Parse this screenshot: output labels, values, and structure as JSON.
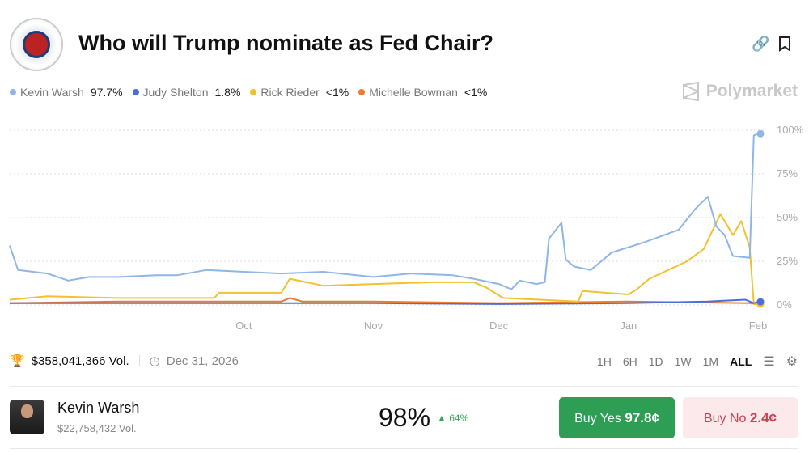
{
  "header": {
    "title": "Who will Trump nominate as Fed Chair?",
    "brand": "Polymarket"
  },
  "legend": [
    {
      "name": "Kevin Warsh",
      "value": "97.7%",
      "color": "#8fb6e6"
    },
    {
      "name": "Judy Shelton",
      "value": "1.8%",
      "color": "#4a6fd6"
    },
    {
      "name": "Rick Rieder",
      "value": "<1%",
      "color": "#f2c12e"
    },
    {
      "name": "Michelle Bowman",
      "value": "<1%",
      "color": "#ee7b30"
    }
  ],
  "footer": {
    "volume": "$358,041,366 Vol.",
    "end_date": "Dec 31, 2026",
    "ranges": [
      "1H",
      "6H",
      "1D",
      "1W",
      "1M",
      "ALL"
    ],
    "active_range": "ALL"
  },
  "outcome": {
    "name": "Kevin Warsh",
    "volume": "$22,758,432 Vol.",
    "percent": "98%",
    "change": "64%",
    "buy_yes_label": "Buy Yes",
    "buy_yes_price": "97.8¢",
    "buy_no_label": "Buy No",
    "buy_no_price": "2.4¢"
  },
  "chart_data": {
    "type": "line",
    "xlim": [
      "2025-08-06",
      "2026-02-01"
    ],
    "ylim": [
      0,
      100
    ],
    "grid": true,
    "legend_placement": "top-left",
    "x_ticks": [
      {
        "label": "Oct",
        "date": "2025-10-01"
      },
      {
        "label": "Nov",
        "date": "2025-11-01"
      },
      {
        "label": "Dec",
        "date": "2025-12-01"
      },
      {
        "label": "Jan",
        "date": "2026-01-01"
      },
      {
        "label": "Feb",
        "date": "2026-02-01"
      }
    ],
    "y_ticks": [
      {
        "label": "0%",
        "v": 0
      },
      {
        "label": "25%",
        "v": 25
      },
      {
        "label": "50%",
        "v": 50
      },
      {
        "label": "75%",
        "v": 75
      },
      {
        "label": "100%",
        "v": 100
      }
    ],
    "series": [
      {
        "name": "Kevin Warsh",
        "color": "#8fb6e6",
        "points": [
          [
            "2025-08-06",
            34
          ],
          [
            "2025-08-08",
            20
          ],
          [
            "2025-08-15",
            18
          ],
          [
            "2025-08-20",
            14
          ],
          [
            "2025-08-25",
            16
          ],
          [
            "2025-09-01",
            16
          ],
          [
            "2025-09-10",
            17
          ],
          [
            "2025-09-15",
            17
          ],
          [
            "2025-09-22",
            20
          ],
          [
            "2025-10-01",
            19
          ],
          [
            "2025-10-10",
            18
          ],
          [
            "2025-10-20",
            19
          ],
          [
            "2025-11-01",
            16
          ],
          [
            "2025-11-10",
            18
          ],
          [
            "2025-11-20",
            17
          ],
          [
            "2025-11-25",
            15
          ],
          [
            "2025-12-01",
            12
          ],
          [
            "2025-12-04",
            9
          ],
          [
            "2025-12-06",
            14
          ],
          [
            "2025-12-10",
            12
          ],
          [
            "2025-12-12",
            13
          ],
          [
            "2025-12-13",
            38
          ],
          [
            "2025-12-16",
            47
          ],
          [
            "2025-12-17",
            26
          ],
          [
            "2025-12-19",
            22
          ],
          [
            "2025-12-23",
            20
          ],
          [
            "2025-12-28",
            30
          ],
          [
            "2026-01-05",
            36
          ],
          [
            "2026-01-13",
            43
          ],
          [
            "2026-01-17",
            55
          ],
          [
            "2026-01-20",
            62
          ],
          [
            "2026-01-22",
            45
          ],
          [
            "2026-01-24",
            40
          ],
          [
            "2026-01-26",
            28
          ],
          [
            "2026-01-30",
            27
          ],
          [
            "2026-01-31",
            97
          ],
          [
            "2026-02-01",
            98
          ]
        ]
      },
      {
        "name": "Judy Shelton",
        "color": "#4a6fd6",
        "points": [
          [
            "2025-08-06",
            1
          ],
          [
            "2025-09-01",
            1
          ],
          [
            "2025-10-01",
            1
          ],
          [
            "2025-11-01",
            1
          ],
          [
            "2025-12-01",
            0.5
          ],
          [
            "2026-01-01",
            1
          ],
          [
            "2026-01-20",
            2
          ],
          [
            "2026-01-29",
            3
          ],
          [
            "2026-01-31",
            1
          ],
          [
            "2026-02-01",
            1.8
          ]
        ]
      },
      {
        "name": "Rick Rieder",
        "color": "#f2c12e",
        "points": [
          [
            "2025-08-06",
            3
          ],
          [
            "2025-08-15",
            5
          ],
          [
            "2025-09-01",
            4
          ],
          [
            "2025-09-24",
            4
          ],
          [
            "2025-09-25",
            7
          ],
          [
            "2025-10-10",
            7
          ],
          [
            "2025-10-12",
            15
          ],
          [
            "2025-10-20",
            11
          ],
          [
            "2025-11-01",
            12
          ],
          [
            "2025-11-15",
            13
          ],
          [
            "2025-11-25",
            13
          ],
          [
            "2025-11-28",
            10
          ],
          [
            "2025-12-02",
            4
          ],
          [
            "2025-12-20",
            2
          ],
          [
            "2025-12-21",
            8
          ],
          [
            "2026-01-01",
            6
          ],
          [
            "2026-01-03",
            9
          ],
          [
            "2026-01-06",
            15
          ],
          [
            "2026-01-15",
            25
          ],
          [
            "2026-01-19",
            32
          ],
          [
            "2026-01-23",
            52
          ],
          [
            "2026-01-26",
            40
          ],
          [
            "2026-01-28",
            48
          ],
          [
            "2026-01-30",
            33
          ],
          [
            "2026-01-31",
            0.5
          ],
          [
            "2026-02-01",
            0.5
          ]
        ]
      },
      {
        "name": "Michelle Bowman",
        "color": "#ee7b30",
        "points": [
          [
            "2025-08-06",
            1
          ],
          [
            "2025-09-01",
            2
          ],
          [
            "2025-10-10",
            2
          ],
          [
            "2025-10-12",
            4
          ],
          [
            "2025-10-15",
            2
          ],
          [
            "2025-11-01",
            2
          ],
          [
            "2025-12-01",
            1
          ],
          [
            "2026-01-01",
            2
          ],
          [
            "2026-01-30",
            1
          ],
          [
            "2026-02-01",
            0.5
          ]
        ]
      }
    ]
  }
}
